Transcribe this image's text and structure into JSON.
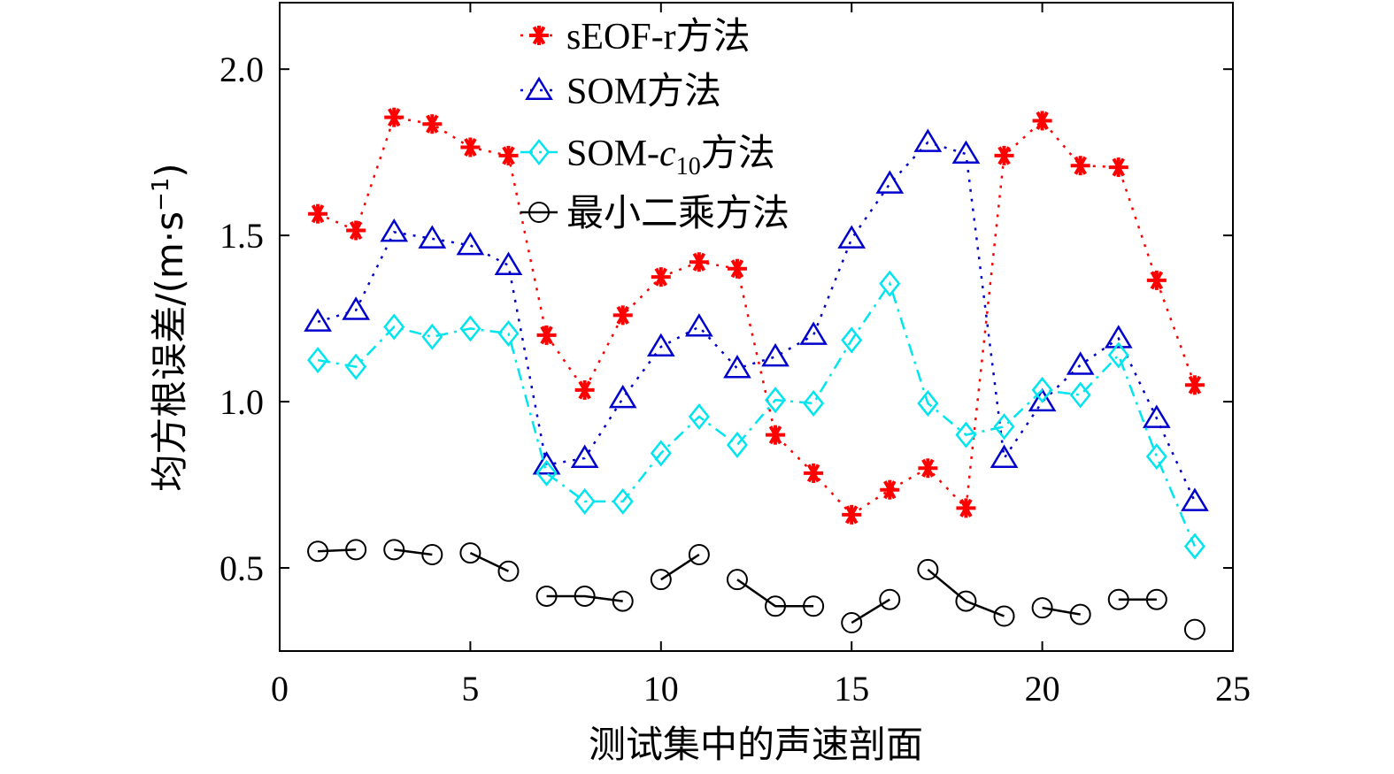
{
  "chart_data": {
    "type": "line",
    "xlabel": "测试集中的声速剖面",
    "ylabel": "均方根误差/(m·s⁻¹)",
    "ylabel_parts": {
      "main": "均方根误差/(m·s",
      "sup": "−1",
      "close": ")"
    },
    "xlim": [
      0,
      25
    ],
    "ylim": [
      0.25,
      2.2
    ],
    "xticks": [
      0,
      5,
      10,
      15,
      20,
      25
    ],
    "xtick_labels": [
      "0",
      "5",
      "10",
      "15",
      "20",
      "25"
    ],
    "yticks": [
      0.5,
      1.0,
      1.5,
      2.0
    ],
    "ytick_labels": [
      "0.5",
      "1.0",
      "1.5",
      "2.0"
    ],
    "grid": false,
    "legend_position": "top-center",
    "x": [
      1,
      2,
      3,
      4,
      5,
      6,
      7,
      8,
      9,
      10,
      11,
      12,
      13,
      14,
      15,
      16,
      17,
      18,
      19,
      20,
      21,
      22,
      23,
      24
    ],
    "series": [
      {
        "name": "sEOF-r方法",
        "legend_label": {
          "main": "sEOF-r方法"
        },
        "color": "#ff0000",
        "marker": "asterisk",
        "line_style": "dotted",
        "segments": [
          [
            0,
            23
          ]
        ],
        "values": [
          1.565,
          1.515,
          1.855,
          1.835,
          1.765,
          1.74,
          1.2,
          1.035,
          1.26,
          1.375,
          1.42,
          1.4,
          0.9,
          0.785,
          0.66,
          0.735,
          0.8,
          0.68,
          1.74,
          1.845,
          1.71,
          1.705,
          1.365,
          1.05
        ]
      },
      {
        "name": "SOM方法",
        "legend_label": {
          "main": "SOM方法"
        },
        "color": "#0000cc",
        "marker": "triangle",
        "line_style": "dotted",
        "segments": [
          [
            0,
            23
          ]
        ],
        "values": [
          1.24,
          1.275,
          1.51,
          1.49,
          1.47,
          1.41,
          0.81,
          0.83,
          1.01,
          1.165,
          1.225,
          1.1,
          1.135,
          1.2,
          1.49,
          1.655,
          1.78,
          1.745,
          0.83,
          1.0,
          1.11,
          1.19,
          0.95,
          0.7
        ]
      },
      {
        "name": "SOM-c10方法",
        "legend_label": {
          "main": "SOM-",
          "italic": "c",
          "sub": "10",
          "suffix": "方法"
        },
        "color": "#00e5ee",
        "marker": "diamond",
        "line_style": "dash-dot",
        "segments": [
          [
            0,
            23
          ]
        ],
        "values": [
          1.125,
          1.105,
          1.225,
          1.195,
          1.22,
          1.205,
          0.785,
          0.7,
          0.7,
          0.845,
          0.955,
          0.87,
          1.005,
          0.995,
          1.185,
          1.355,
          0.995,
          0.9,
          0.925,
          1.035,
          1.02,
          1.14,
          0.835,
          0.565
        ]
      },
      {
        "name": "最小二乘方法",
        "legend_label": {
          "main": "最小二乘方法"
        },
        "color": "#000000",
        "marker": "circle",
        "line_style": "solid",
        "segments": [
          [
            0,
            1
          ],
          [
            2,
            3
          ],
          [
            4,
            5
          ],
          [
            6,
            8
          ],
          [
            9,
            10
          ],
          [
            11,
            13
          ],
          [
            14,
            15
          ],
          [
            16,
            18
          ],
          [
            19,
            20
          ],
          [
            21,
            22
          ],
          [
            23,
            23
          ]
        ],
        "values": [
          0.55,
          0.555,
          0.555,
          0.54,
          0.545,
          0.49,
          0.415,
          0.415,
          0.4,
          0.465,
          0.54,
          0.465,
          0.385,
          0.385,
          0.335,
          0.405,
          0.495,
          0.4,
          0.355,
          0.38,
          0.36,
          0.405,
          0.405,
          0.315
        ]
      }
    ]
  }
}
